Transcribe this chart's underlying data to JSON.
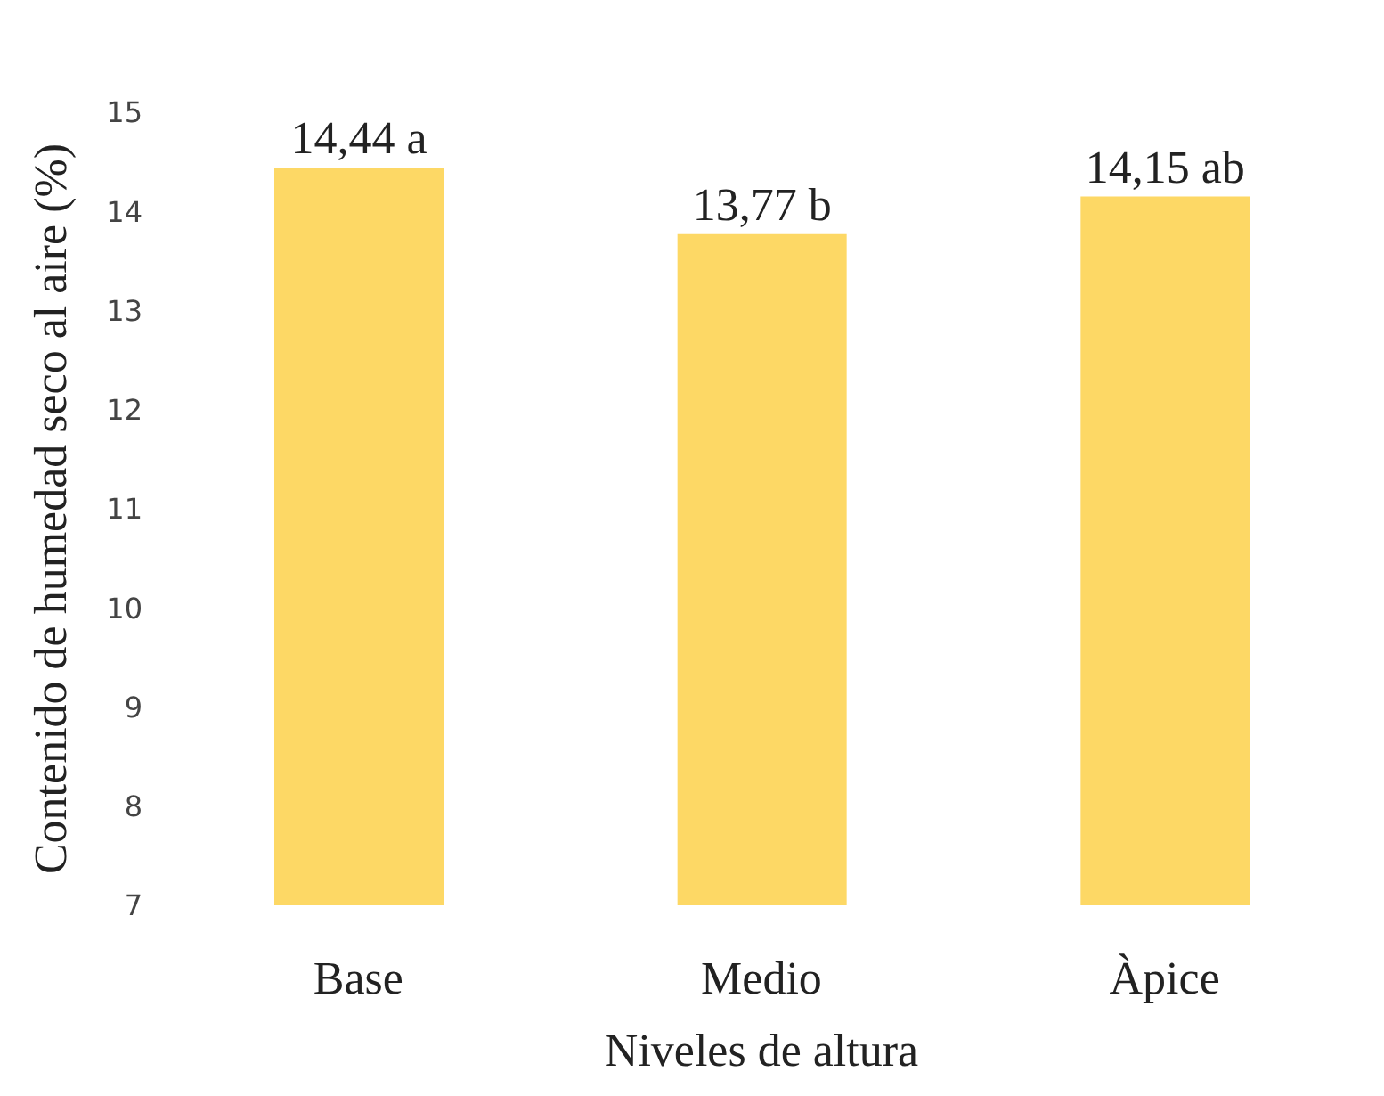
{
  "chart_data": {
    "type": "bar",
    "xlabel": "Niveles de altura",
    "ylabel": "Contenido de humedad seco al aire (%)",
    "categories": [
      "Base",
      "Medio",
      "Àpice"
    ],
    "values": [
      14.44,
      13.77,
      14.15
    ],
    "value_labels": [
      "14,44 a",
      "13,77 b",
      "14,15 ab"
    ],
    "color": "#fdd865",
    "ylim": [
      7,
      15
    ],
    "yticks": [
      7,
      8,
      9,
      10,
      11,
      12,
      13,
      14,
      15
    ]
  }
}
